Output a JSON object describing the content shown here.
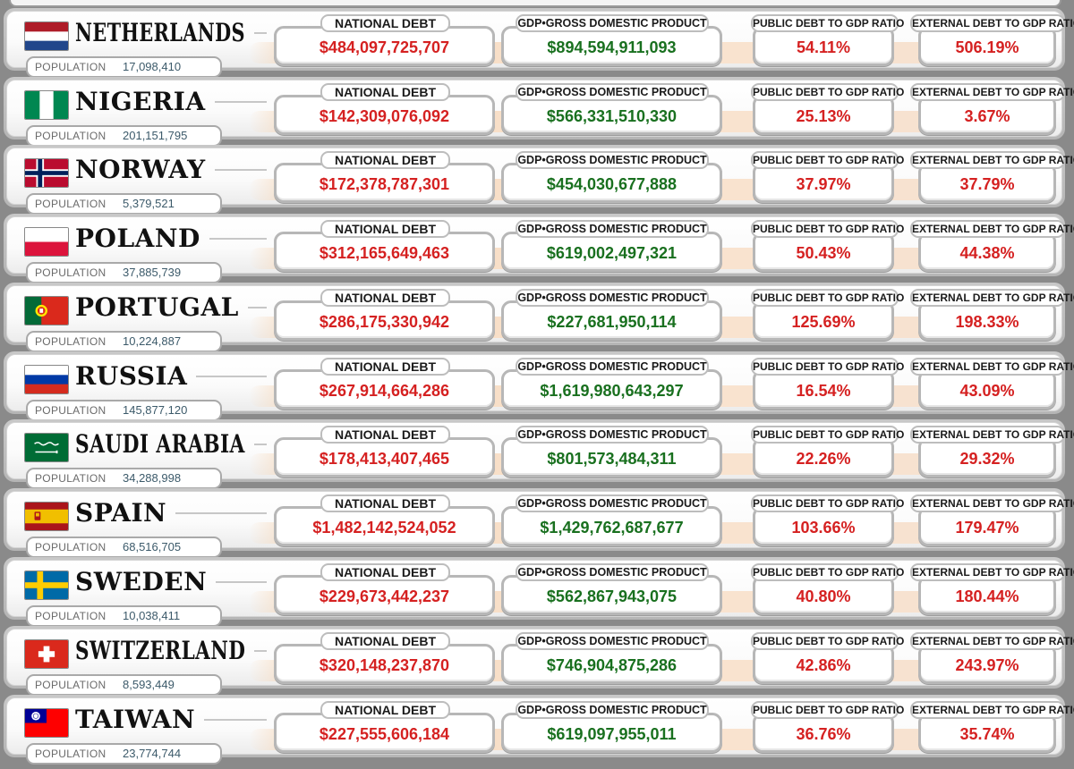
{
  "labels": {
    "population": "POPULATION",
    "national_debt": "NATIONAL DEBT",
    "gdp": "GDP•GROSS DOMESTIC PRODUCT",
    "public_ratio": "PUBLIC DEBT TO GDP RATIO",
    "external_ratio": "EXTERNAL DEBT TO GDP RATIO"
  },
  "colors": {
    "debt_text": "#d52121",
    "gdp_text": "#19701f",
    "ratio_text": "#d52121"
  },
  "countries": [
    {
      "name": "NETHERLANDS",
      "flag_icon": "netherlands-flag-icon",
      "population": "17,098,410",
      "national_debt": "$484,097,725,707",
      "gdp": "$894,594,911,093",
      "public_debt_ratio": "54.11%",
      "external_debt_ratio": "506.19%"
    },
    {
      "name": "NIGERIA",
      "flag_icon": "nigeria-flag-icon",
      "population": "201,151,795",
      "national_debt": "$142,309,076,092",
      "gdp": "$566,331,510,330",
      "public_debt_ratio": "25.13%",
      "external_debt_ratio": "3.67%"
    },
    {
      "name": "NORWAY",
      "flag_icon": "norway-flag-icon",
      "population": "5,379,521",
      "national_debt": "$172,378,787,301",
      "gdp": "$454,030,677,888",
      "public_debt_ratio": "37.97%",
      "external_debt_ratio": "37.79%"
    },
    {
      "name": "POLAND",
      "flag_icon": "poland-flag-icon",
      "population": "37,885,739",
      "national_debt": "$312,165,649,463",
      "gdp": "$619,002,497,321",
      "public_debt_ratio": "50.43%",
      "external_debt_ratio": "44.38%"
    },
    {
      "name": "PORTUGAL",
      "flag_icon": "portugal-flag-icon",
      "population": "10,224,887",
      "national_debt": "$286,175,330,942",
      "gdp": "$227,681,950,114",
      "public_debt_ratio": "125.69%",
      "external_debt_ratio": "198.33%"
    },
    {
      "name": "RUSSIA",
      "flag_icon": "russia-flag-icon",
      "population": "145,877,120",
      "national_debt": "$267,914,664,286",
      "gdp": "$1,619,980,643,297",
      "public_debt_ratio": "16.54%",
      "external_debt_ratio": "43.09%"
    },
    {
      "name": "SAUDI ARABIA",
      "flag_icon": "saudi-arabia-flag-icon",
      "population": "34,288,998",
      "national_debt": "$178,413,407,465",
      "gdp": "$801,573,484,311",
      "public_debt_ratio": "22.26%",
      "external_debt_ratio": "29.32%"
    },
    {
      "name": "SPAIN",
      "flag_icon": "spain-flag-icon",
      "population": "68,516,705",
      "national_debt": "$1,482,142,524,052",
      "gdp": "$1,429,762,687,677",
      "public_debt_ratio": "103.66%",
      "external_debt_ratio": "179.47%"
    },
    {
      "name": "SWEDEN",
      "flag_icon": "sweden-flag-icon",
      "population": "10,038,411",
      "national_debt": "$229,673,442,237",
      "gdp": "$562,867,943,075",
      "public_debt_ratio": "40.80%",
      "external_debt_ratio": "180.44%"
    },
    {
      "name": "SWITZERLAND",
      "flag_icon": "switzerland-flag-icon",
      "population": "8,593,449",
      "national_debt": "$320,148,237,870",
      "gdp": "$746,904,875,286",
      "public_debt_ratio": "42.86%",
      "external_debt_ratio": "243.97%"
    },
    {
      "name": "TAIWAN",
      "flag_icon": "taiwan-flag-icon",
      "population": "23,774,744",
      "national_debt": "$227,555,606,184",
      "gdp": "$619,097,955,011",
      "public_debt_ratio": "36.76%",
      "external_debt_ratio": "35.74%"
    }
  ]
}
